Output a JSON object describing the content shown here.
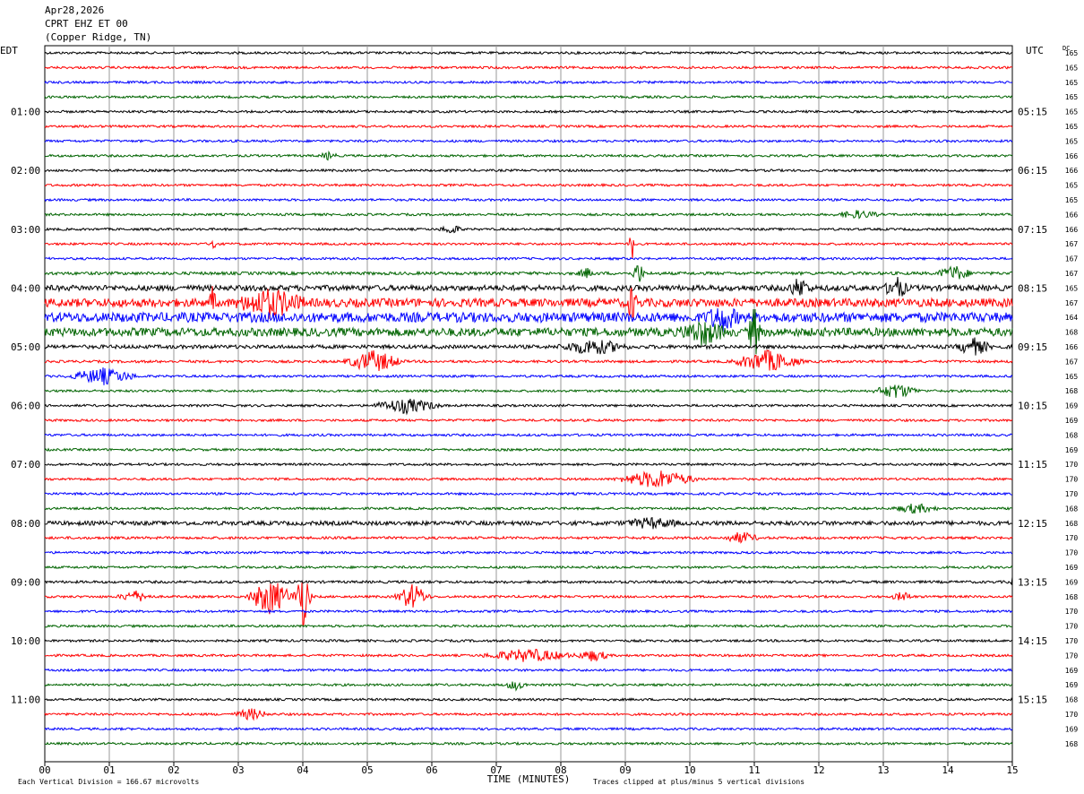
{
  "header": {
    "date": "Apr28,2026",
    "channel": "CPRT EHZ ET 00",
    "location": "(Copper Ridge, TN)"
  },
  "chart_data": {
    "type": "seismogram",
    "title": "CPRT EHZ ET 00",
    "left_axis_title": "EDT",
    "right_axis_title": "UTC",
    "dc_title": "DC",
    "xlabel": "TIME (MINUTES)",
    "x_ticks": [
      "00",
      "01",
      "02",
      "03",
      "04",
      "05",
      "06",
      "07",
      "08",
      "09",
      "10",
      "11",
      "12",
      "13",
      "14",
      "15"
    ],
    "xlim": [
      0,
      15
    ],
    "rows_per_hour": 4,
    "row_colors": [
      "#000000",
      "#ff0000",
      "#0000ff",
      "#006400"
    ],
    "left_hour_labels": [
      "01:00",
      "02:00",
      "03:00",
      "04:00",
      "05:00",
      "06:00",
      "07:00",
      "08:00",
      "09:00",
      "10:00",
      "11:00"
    ],
    "right_hour_labels": [
      "05:15",
      "06:15",
      "07:15",
      "08:15",
      "09:15",
      "10:15",
      "11:15",
      "12:15",
      "13:15",
      "14:15",
      "15:15"
    ],
    "hour_label_rows": [
      4,
      8,
      12,
      16,
      20,
      24,
      28,
      32,
      36,
      40,
      44
    ],
    "dc_values": [
      165,
      165,
      165,
      165,
      165,
      165,
      165,
      166,
      166,
      165,
      165,
      166,
      166,
      167,
      167,
      167,
      165,
      167,
      164,
      168,
      166,
      167,
      165,
      168,
      169,
      169,
      168,
      169,
      170,
      170,
      170,
      168,
      168,
      170,
      170,
      169,
      169,
      168,
      170,
      170,
      170,
      170,
      169,
      169,
      168,
      170,
      169,
      168
    ],
    "noise_levels": [
      1,
      1,
      1,
      1,
      1,
      1,
      1,
      1,
      1,
      1,
      1,
      1,
      1,
      1,
      1,
      1.3,
      2.4,
      3.6,
      4.2,
      3.6,
      1.6,
      1.1,
      1,
      1,
      1,
      1,
      1,
      1,
      1,
      1,
      1,
      1,
      1.8,
      1.1,
      1,
      1,
      1.1,
      1,
      1,
      1,
      1,
      1,
      1,
      1,
      1,
      1,
      1,
      1
    ],
    "events": [
      {
        "row": 7,
        "minute": 4.4,
        "amp": 4,
        "dur": 0.15
      },
      {
        "row": 11,
        "minute": 12.6,
        "amp": 4,
        "dur": 0.4
      },
      {
        "row": 12,
        "minute": 6.3,
        "amp": 5,
        "dur": 0.2
      },
      {
        "row": 13,
        "minute": 2.6,
        "amp": 20,
        "dur": 0.05
      },
      {
        "row": 13,
        "minute": 9.1,
        "amp": 22,
        "dur": 0.05
      },
      {
        "row": 15,
        "minute": 8.4,
        "amp": 5,
        "dur": 0.15
      },
      {
        "row": 15,
        "minute": 9.2,
        "amp": 14,
        "dur": 0.1
      },
      {
        "row": 15,
        "minute": 14.1,
        "amp": 8,
        "dur": 0.3
      },
      {
        "row": 16,
        "minute": 11.7,
        "amp": 10,
        "dur": 0.2
      },
      {
        "row": 16,
        "minute": 13.2,
        "amp": 12,
        "dur": 0.2
      },
      {
        "row": 17,
        "minute": 2.6,
        "amp": 22,
        "dur": 0.05
      },
      {
        "row": 17,
        "minute": 3.5,
        "amp": 14,
        "dur": 0.6
      },
      {
        "row": 17,
        "minute": 9.1,
        "amp": 18,
        "dur": 0.1
      },
      {
        "row": 18,
        "minute": 10.5,
        "amp": 12,
        "dur": 0.3
      },
      {
        "row": 19,
        "minute": 10.2,
        "amp": 12,
        "dur": 0.4
      },
      {
        "row": 19,
        "minute": 11.0,
        "amp": 30,
        "dur": 0.1
      },
      {
        "row": 20,
        "minute": 8.5,
        "amp": 8,
        "dur": 0.6
      },
      {
        "row": 20,
        "minute": 14.4,
        "amp": 9,
        "dur": 0.3
      },
      {
        "row": 21,
        "minute": 5.1,
        "amp": 12,
        "dur": 0.5
      },
      {
        "row": 21,
        "minute": 11.2,
        "amp": 12,
        "dur": 0.6
      },
      {
        "row": 22,
        "minute": 0.9,
        "amp": 9,
        "dur": 0.6
      },
      {
        "row": 23,
        "minute": 13.2,
        "amp": 8,
        "dur": 0.4
      },
      {
        "row": 24,
        "minute": 5.6,
        "amp": 8,
        "dur": 0.6
      },
      {
        "row": 29,
        "minute": 9.5,
        "amp": 10,
        "dur": 0.7
      },
      {
        "row": 31,
        "minute": 13.5,
        "amp": 5,
        "dur": 0.4
      },
      {
        "row": 32,
        "minute": 9.4,
        "amp": 5,
        "dur": 0.5
      },
      {
        "row": 33,
        "minute": 10.8,
        "amp": 6,
        "dur": 0.3
      },
      {
        "row": 36,
        "minute": 15.0,
        "amp": 6,
        "dur": 0.05
      },
      {
        "row": 37,
        "minute": 1.4,
        "amp": 6,
        "dur": 0.3
      },
      {
        "row": 37,
        "minute": 3.5,
        "amp": 20,
        "dur": 0.4
      },
      {
        "row": 37,
        "minute": 4.0,
        "amp": 35,
        "dur": 0.15
      },
      {
        "row": 37,
        "minute": 5.7,
        "amp": 14,
        "dur": 0.3
      },
      {
        "row": 37,
        "minute": 13.3,
        "amp": 5,
        "dur": 0.2
      },
      {
        "row": 41,
        "minute": 7.5,
        "amp": 7,
        "dur": 0.8
      },
      {
        "row": 41,
        "minute": 8.5,
        "amp": 6,
        "dur": 0.3
      },
      {
        "row": 43,
        "minute": 7.3,
        "amp": 5,
        "dur": 0.2
      },
      {
        "row": 45,
        "minute": 3.2,
        "amp": 6,
        "dur": 0.3
      }
    ],
    "footer_left": "Each Vertical Division =  166.67 microvolts",
    "footer_right": "Traces clipped at plus/minus 5 vertical divisions"
  }
}
